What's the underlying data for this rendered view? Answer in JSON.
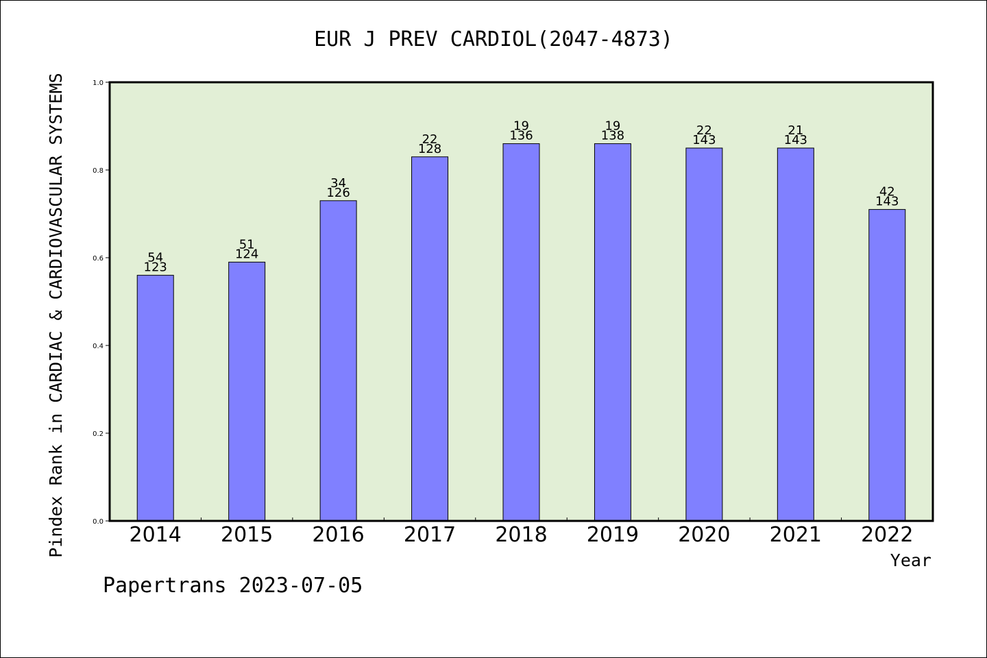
{
  "chart_data": {
    "type": "bar",
    "title": "EUR J PREV CARDIOL(2047-4873)",
    "ylabel": "Pindex Rank in CARDIAC & CARDIOVASCULAR SYSTEMS",
    "xlabel": "Year",
    "footer": "Papertrans 2023-07-05",
    "ylim": [
      0,
      1.0
    ],
    "yticks": [
      "0.0",
      "0.2",
      "0.4",
      "0.6",
      "0.8",
      "1.0"
    ],
    "categories": [
      "2014",
      "2015",
      "2016",
      "2017",
      "2018",
      "2019",
      "2020",
      "2021",
      "2022"
    ],
    "values": [
      0.56,
      0.59,
      0.73,
      0.83,
      0.86,
      0.86,
      0.85,
      0.85,
      0.71
    ],
    "rank_labels": [
      "54",
      "51",
      "34",
      "22",
      "19",
      "19",
      "22",
      "21",
      "42"
    ],
    "total_labels": [
      "123",
      "124",
      "126",
      "128",
      "136",
      "138",
      "143",
      "143",
      "143"
    ],
    "grid": false,
    "colors": {
      "plot_bg": "#e2efd6",
      "bar_fill": "#8080ff",
      "bar_stroke": "#000000"
    }
  }
}
